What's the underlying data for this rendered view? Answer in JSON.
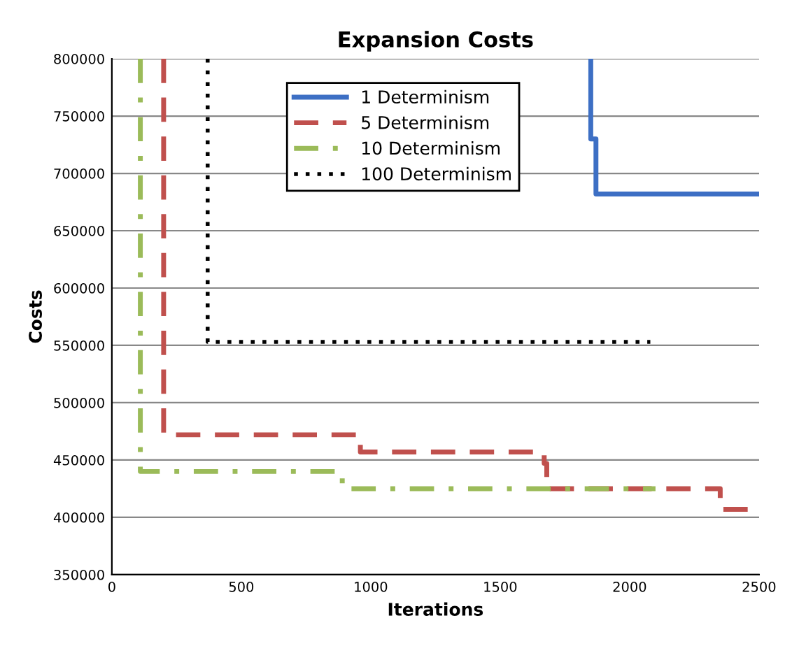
{
  "chart_data": {
    "type": "line",
    "title": "Expansion Costs",
    "xlabel": "Iterations",
    "ylabel": "Costs",
    "xlim": [
      0,
      2500
    ],
    "xticks": [
      0,
      500,
      1000,
      1500,
      2000,
      2500
    ],
    "ylim": [
      350000,
      800000
    ],
    "yticks": [
      350000,
      400000,
      450000,
      500000,
      550000,
      600000,
      650000,
      700000,
      750000,
      800000
    ],
    "grid": "y",
    "legend": "top",
    "series": [
      {
        "name": "1 Determinism",
        "color": "#3d6fc4",
        "line_style": "solid",
        "x": [
          1850,
          1850,
          1870,
          1870,
          2500
        ],
        "values": [
          800000,
          730000,
          730000,
          682000,
          682000
        ]
      },
      {
        "name": "5 Determinism",
        "color": "#c0504d",
        "line_style": "dashed",
        "x": [
          200,
          200,
          960,
          960,
          1670,
          1670,
          1680,
          1680,
          2350,
          2350,
          2500
        ],
        "values": [
          800000,
          472000,
          472000,
          457000,
          457000,
          447000,
          447000,
          425000,
          425000,
          407000,
          407000
        ]
      },
      {
        "name": "10 Determinism",
        "color": "#9bbb59",
        "line_style": "dashdot",
        "x": [
          110,
          110,
          890,
          890,
          2100
        ],
        "values": [
          800000,
          440000,
          440000,
          425000,
          425000
        ]
      },
      {
        "name": "100 Determinism",
        "color": "#000000",
        "line_style": "dotted",
        "x": [
          370,
          370,
          2080
        ],
        "values": [
          800000,
          553000,
          553000
        ]
      }
    ]
  }
}
